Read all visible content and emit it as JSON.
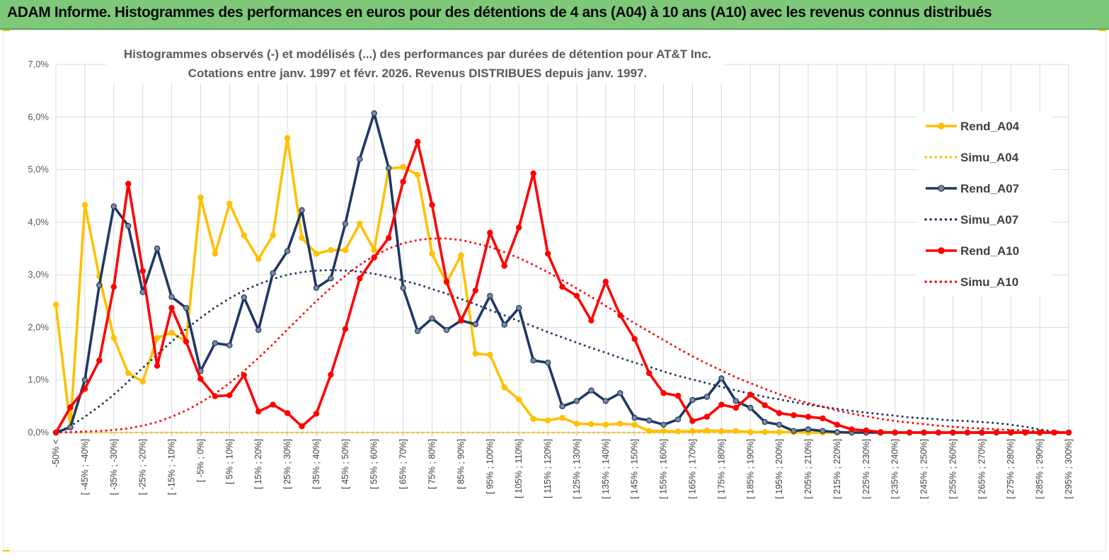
{
  "page": {
    "banner_title": "ADAM Informe. Histogrammes des performances en euros pour des détentions de 4 ans (A04) à 10 ans (A10) avec les revenus connus distribués",
    "colors": {
      "banner": "#7ec87a",
      "a04": "#ffc000",
      "a07": "#1f3864",
      "a10": "#ff0000"
    }
  },
  "chart_data": {
    "type": "line",
    "title_lines": [
      "Histogrammes observés (-) et modélisés (...) des performances par durées de détention pour AT&T Inc.",
      "Cotations entre janv. 1997 et févr. 2026. Revenus DISTRIBUES depuis janv. 1997."
    ],
    "ylim": [
      0,
      7.0
    ],
    "y_ticks": [
      "0,0%",
      "1,0%",
      "2,0%",
      "3,0%",
      "4,0%",
      "5,0%",
      "6,0%",
      "7,0%"
    ],
    "categories": [
      "-50% <",
      "[ -50% ; -45%]",
      "[ -45% ; -40%]",
      "[ -40% ; -35%]",
      "[ -35% ; -30%]",
      "[ -30% ; -25%]",
      "[ -25% ; -20%]",
      "[ -20% ; -15%]",
      "[ -15% ; -10%]",
      "[ -10% ; -5%]",
      "[ -5% ; 0%]",
      "[ 0% ; 5%]",
      "[ 5% ; 10%]",
      "[ 10% ; 15%]",
      "[ 15% ; 20%]",
      "[ 20% ; 25%]",
      "[ 25% ; 30%]",
      "[ 30% ; 35%]",
      "[ 35% ; 40%]",
      "[ 40% ; 45%]",
      "[ 45% ; 50%]",
      "[ 50% ; 55%]",
      "[ 55% ; 60%]",
      "[ 60% ; 65%]",
      "[ 65% ; 70%]",
      "[ 70% ; 75%]",
      "[ 75% ; 80%]",
      "[ 80% ; 85%]",
      "[ 85% ; 90%]",
      "[ 90% ; 95%]",
      "[ 95% ; 100%]",
      "[ 100% ; 105%]",
      "[ 105% ; 110%]",
      "[ 110% ; 115%]",
      "[ 115% ; 120%]",
      "[ 120% ; 125%]",
      "[ 125% ; 130%]",
      "[ 130% ; 135%]",
      "[ 135% ; 140%]",
      "[ 140% ; 145%]",
      "[ 145% ; 150%]",
      "[ 150% ; 155%]",
      "[ 155% ; 160%]",
      "[ 160% ; 165%]",
      "[ 165% ; 170%]",
      "[ 170% ; 175%]",
      "[ 175% ; 180%]",
      "[ 180% ; 185%]",
      "[ 185% ; 190%]",
      "[ 190% ; 195%]",
      "[ 195% ; 200%]",
      "[ 200% ; 205%]",
      "[ 205% ; 210%]",
      "[ 210% ; 215%]",
      "[ 215% ; 220%]",
      "[ 220% ; 225%]",
      "[ 225% ; 230%]",
      "[ 230% ; 235%]",
      "[ 235% ; 240%]",
      "[ 240% ; 245%]",
      "[ 245% ; 250%]",
      "[ 250% ; 255%]",
      "[ 255% ; 260%]",
      "[ 260% ; 265%]",
      "[ 265% ; 270%]",
      "[ 270% ; 275%]",
      "[ 275% ; 280%]",
      "[ 280% ; 285%]",
      "[ 285% ; 290%]",
      "[ 290% ; 295%]",
      "[ 295% ; 300%]"
    ],
    "label_every": 2,
    "series": [
      {
        "name": "Rend_A04",
        "style": "solid",
        "color": "#ffc000",
        "values": [
          2.43,
          0.1,
          4.33,
          2.97,
          1.8,
          1.13,
          0.97,
          1.8,
          1.9,
          1.73,
          4.47,
          3.4,
          4.35,
          3.75,
          3.3,
          3.75,
          5.6,
          3.7,
          3.4,
          3.47,
          3.47,
          3.97,
          3.47,
          5.02,
          5.05,
          4.9,
          3.4,
          2.85,
          3.37,
          1.5,
          1.48,
          0.86,
          0.63,
          0.26,
          0.23,
          0.28,
          0.17,
          0.16,
          0.15,
          0.17,
          0.15,
          0.03,
          0.03,
          0.02,
          0.03,
          0.04,
          0.03,
          0.03,
          0.01,
          0.01,
          0.01,
          0.01,
          0,
          0,
          0,
          0,
          0,
          0,
          0,
          0,
          0,
          0,
          0,
          0,
          0,
          0,
          0,
          0,
          0,
          0,
          0
        ]
      },
      {
        "name": "Simu_A04",
        "style": "dotted",
        "color": "#ffc000",
        "values": [
          0,
          0,
          0,
          0,
          0,
          0,
          0,
          0,
          0,
          0,
          0,
          0,
          0,
          0,
          0,
          0,
          0,
          0,
          0,
          0,
          0,
          0,
          0,
          0,
          0,
          0,
          0,
          0,
          0,
          0,
          0,
          0,
          0,
          0,
          0,
          0,
          0,
          0,
          0,
          0,
          0,
          0,
          0,
          0,
          0,
          0,
          0,
          0,
          0,
          0,
          0,
          0,
          0,
          0,
          0,
          0,
          0,
          0,
          0,
          0,
          0,
          0,
          0,
          0,
          0,
          0,
          0,
          0,
          0,
          0,
          0
        ]
      },
      {
        "name": "Rend_A07",
        "style": "solid",
        "color": "#1f3864",
        "values": [
          0,
          0.1,
          1.0,
          2.8,
          4.3,
          3.93,
          2.67,
          3.5,
          2.58,
          2.37,
          1.17,
          1.7,
          1.66,
          2.57,
          1.95,
          3.03,
          3.45,
          4.23,
          2.75,
          2.93,
          3.97,
          5.2,
          6.07,
          5.03,
          2.75,
          1.93,
          2.17,
          1.95,
          2.13,
          2.06,
          2.6,
          2.05,
          2.37,
          1.37,
          1.33,
          0.5,
          0.6,
          0.8,
          0.6,
          0.75,
          0.28,
          0.23,
          0.15,
          0.25,
          0.62,
          0.68,
          1.03,
          0.6,
          0.47,
          0.2,
          0.15,
          0.03,
          0.06,
          0.03,
          0.01,
          0,
          0,
          0,
          0,
          0,
          0,
          0,
          0,
          0,
          0,
          0,
          0,
          0,
          0,
          0,
          0
        ]
      },
      {
        "name": "Simu_A07",
        "style": "dotted",
        "color": "#1f3864",
        "values": [
          0,
          0.12,
          0.3,
          0.5,
          0.72,
          0.97,
          1.23,
          1.48,
          1.73,
          1.97,
          2.18,
          2.38,
          2.55,
          2.7,
          2.82,
          2.92,
          3.0,
          3.05,
          3.08,
          3.09,
          3.08,
          3.06,
          3.02,
          2.96,
          2.89,
          2.82,
          2.73,
          2.64,
          2.54,
          2.44,
          2.33,
          2.23,
          2.12,
          2.02,
          1.91,
          1.81,
          1.71,
          1.61,
          1.52,
          1.42,
          1.33,
          1.25,
          1.16,
          1.08,
          1.01,
          0.94,
          0.87,
          0.8,
          0.74,
          0.68,
          0.63,
          0.58,
          0.53,
          0.49,
          0.45,
          0.41,
          0.38,
          0.35,
          0.32,
          0.29,
          0.27,
          0.25,
          0.23,
          0.22,
          0.2,
          0.18,
          0.15,
          0.11,
          0.06,
          0.02,
          0
        ]
      },
      {
        "name": "Rend_A10",
        "style": "solid",
        "color": "#ff0000",
        "values": [
          0,
          0.48,
          0.83,
          1.37,
          2.77,
          4.73,
          3.07,
          1.27,
          2.37,
          1.73,
          1.02,
          0.69,
          0.71,
          1.09,
          0.4,
          0.53,
          0.37,
          0.12,
          0.36,
          1.1,
          1.97,
          2.93,
          3.33,
          3.7,
          4.77,
          5.53,
          4.33,
          2.87,
          2.13,
          2.7,
          3.8,
          3.17,
          3.9,
          4.93,
          3.4,
          2.77,
          2.6,
          2.13,
          2.87,
          2.23,
          1.78,
          1.13,
          0.75,
          0.7,
          0.22,
          0.3,
          0.53,
          0.47,
          0.72,
          0.52,
          0.37,
          0.33,
          0.3,
          0.27,
          0.15,
          0.06,
          0.04,
          0.01,
          0,
          0,
          0,
          0,
          0,
          0,
          0,
          0,
          0,
          0,
          0,
          0,
          0
        ]
      },
      {
        "name": "Simu_A10",
        "style": "dotted",
        "color": "#ff0000",
        "values": [
          0,
          0.01,
          0.02,
          0.03,
          0.05,
          0.08,
          0.13,
          0.2,
          0.3,
          0.42,
          0.57,
          0.74,
          0.94,
          1.17,
          1.42,
          1.68,
          1.96,
          2.23,
          2.5,
          2.75,
          2.98,
          3.19,
          3.36,
          3.5,
          3.6,
          3.66,
          3.69,
          3.69,
          3.66,
          3.6,
          3.53,
          3.43,
          3.32,
          3.19,
          3.05,
          2.9,
          2.74,
          2.58,
          2.41,
          2.25,
          2.08,
          1.92,
          1.76,
          1.6,
          1.45,
          1.31,
          1.18,
          1.05,
          0.94,
          0.83,
          0.73,
          0.64,
          0.56,
          0.49,
          0.42,
          0.36,
          0.31,
          0.26,
          0.22,
          0.19,
          0.16,
          0.13,
          0.11,
          0.09,
          0.08,
          0.06,
          0.05,
          0.04,
          0.03,
          0.02,
          0
        ]
      }
    ],
    "legend": [
      "Rend_A04",
      "Simu_A04",
      "Rend_A07",
      "Simu_A07",
      "Rend_A10",
      "Simu_A10"
    ],
    "legend_position": "right"
  }
}
